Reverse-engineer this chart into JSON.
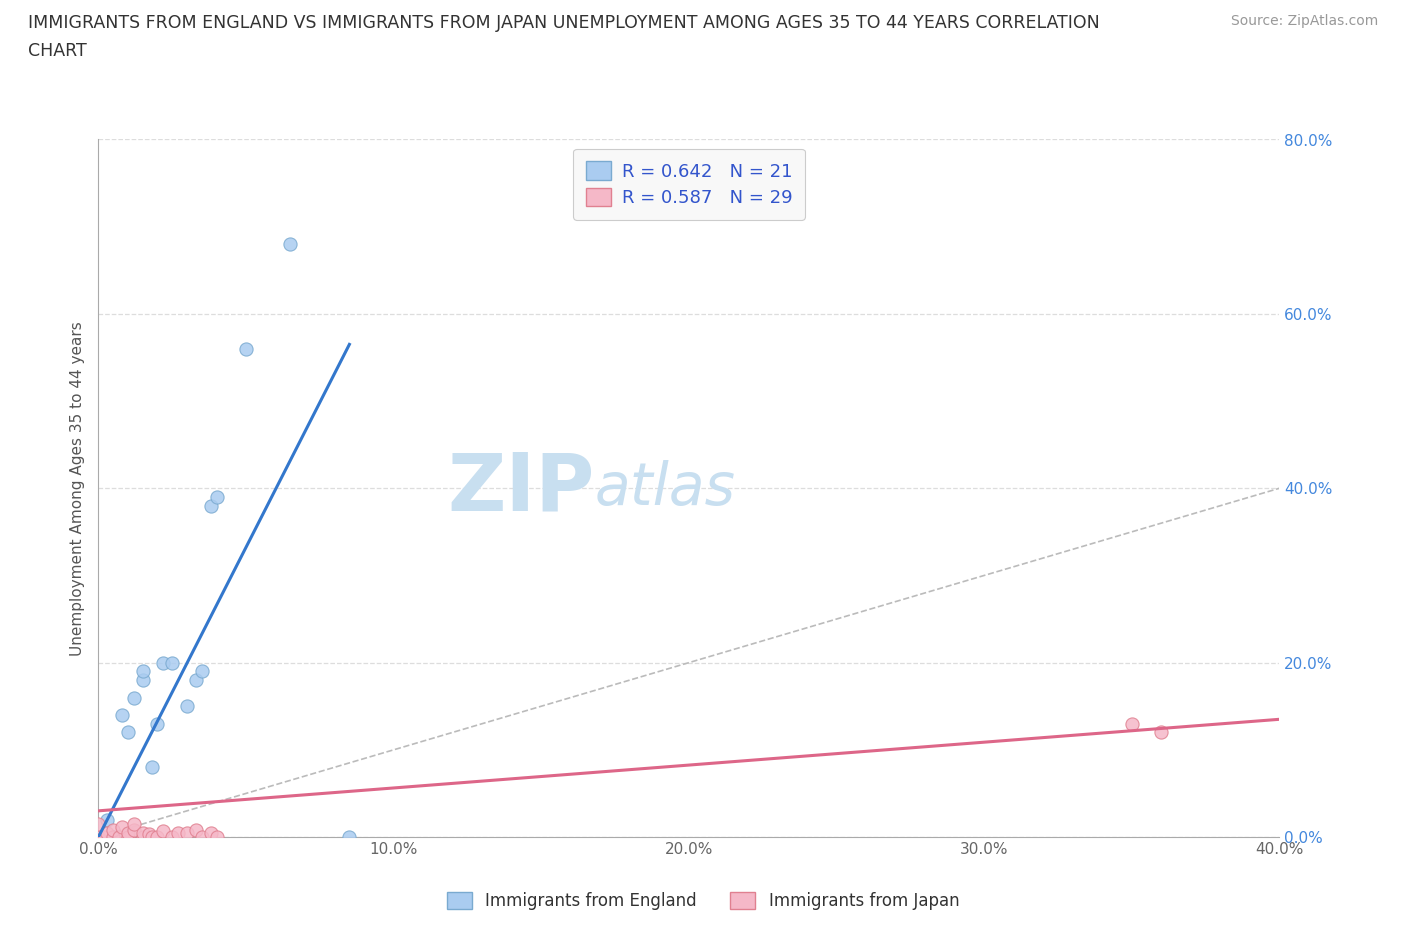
{
  "title_line1": "IMMIGRANTS FROM ENGLAND VS IMMIGRANTS FROM JAPAN UNEMPLOYMENT AMONG AGES 35 TO 44 YEARS CORRELATION",
  "title_line2": "CHART",
  "source_text": "Source: ZipAtlas.com",
  "ylabel": "Unemployment Among Ages 35 to 44 years",
  "xlim": [
    0.0,
    0.4
  ],
  "ylim": [
    0.0,
    0.8
  ],
  "xtick_labels": [
    "0.0%",
    "10.0%",
    "20.0%",
    "30.0%",
    "40.0%"
  ],
  "xtick_values": [
    0.0,
    0.1,
    0.2,
    0.3,
    0.4
  ],
  "ytick_labels": [
    "0.0%",
    "20.0%",
    "40.0%",
    "60.0%",
    "80.0%"
  ],
  "ytick_values": [
    0.0,
    0.2,
    0.4,
    0.6,
    0.8
  ],
  "england_color": "#aaccf0",
  "england_edge": "#7aaad0",
  "japan_color": "#f5b8c8",
  "japan_edge": "#e08090",
  "england_R": 0.642,
  "england_N": 21,
  "japan_R": 0.587,
  "japan_N": 29,
  "england_line_color": "#3377cc",
  "japan_line_color": "#dd6688",
  "diagonal_color": "#bbbbbb",
  "watermark_zip": "ZIP",
  "watermark_atlas": "atlas",
  "watermark_color_zip": "#c8dff0",
  "watermark_color_atlas": "#c8dff0",
  "legend_box_color": "#f8f8f8",
  "legend_border_color": "#cccccc",
  "england_x": [
    0.0,
    0.0,
    0.003,
    0.005,
    0.008,
    0.01,
    0.012,
    0.015,
    0.015,
    0.018,
    0.02,
    0.022,
    0.025,
    0.03,
    0.033,
    0.035,
    0.038,
    0.04,
    0.05,
    0.065,
    0.085
  ],
  "england_y": [
    0.0,
    0.0,
    0.02,
    0.0,
    0.14,
    0.12,
    0.16,
    0.18,
    0.19,
    0.08,
    0.13,
    0.2,
    0.2,
    0.15,
    0.18,
    0.19,
    0.38,
    0.39,
    0.56,
    0.68,
    0.0
  ],
  "japan_x": [
    0.0,
    0.0,
    0.0,
    0.0,
    0.002,
    0.003,
    0.005,
    0.005,
    0.007,
    0.008,
    0.01,
    0.01,
    0.012,
    0.012,
    0.015,
    0.015,
    0.017,
    0.018,
    0.02,
    0.022,
    0.025,
    0.027,
    0.03,
    0.033,
    0.035,
    0.038,
    0.04,
    0.35,
    0.36
  ],
  "japan_y": [
    0.0,
    0.0,
    0.0,
    0.015,
    0.0,
    0.005,
    0.0,
    0.008,
    0.0,
    0.012,
    0.0,
    0.005,
    0.008,
    0.015,
    0.0,
    0.005,
    0.003,
    0.0,
    0.0,
    0.007,
    0.0,
    0.005,
    0.005,
    0.008,
    0.0,
    0.005,
    0.0,
    0.13,
    0.12
  ],
  "england_line_x0": 0.0,
  "england_line_y0": 0.0,
  "england_line_x1": 0.085,
  "england_line_y1": 0.565,
  "japan_line_x0": 0.0,
  "japan_line_y0": 0.03,
  "japan_line_x1": 0.4,
  "japan_line_y1": 0.135
}
